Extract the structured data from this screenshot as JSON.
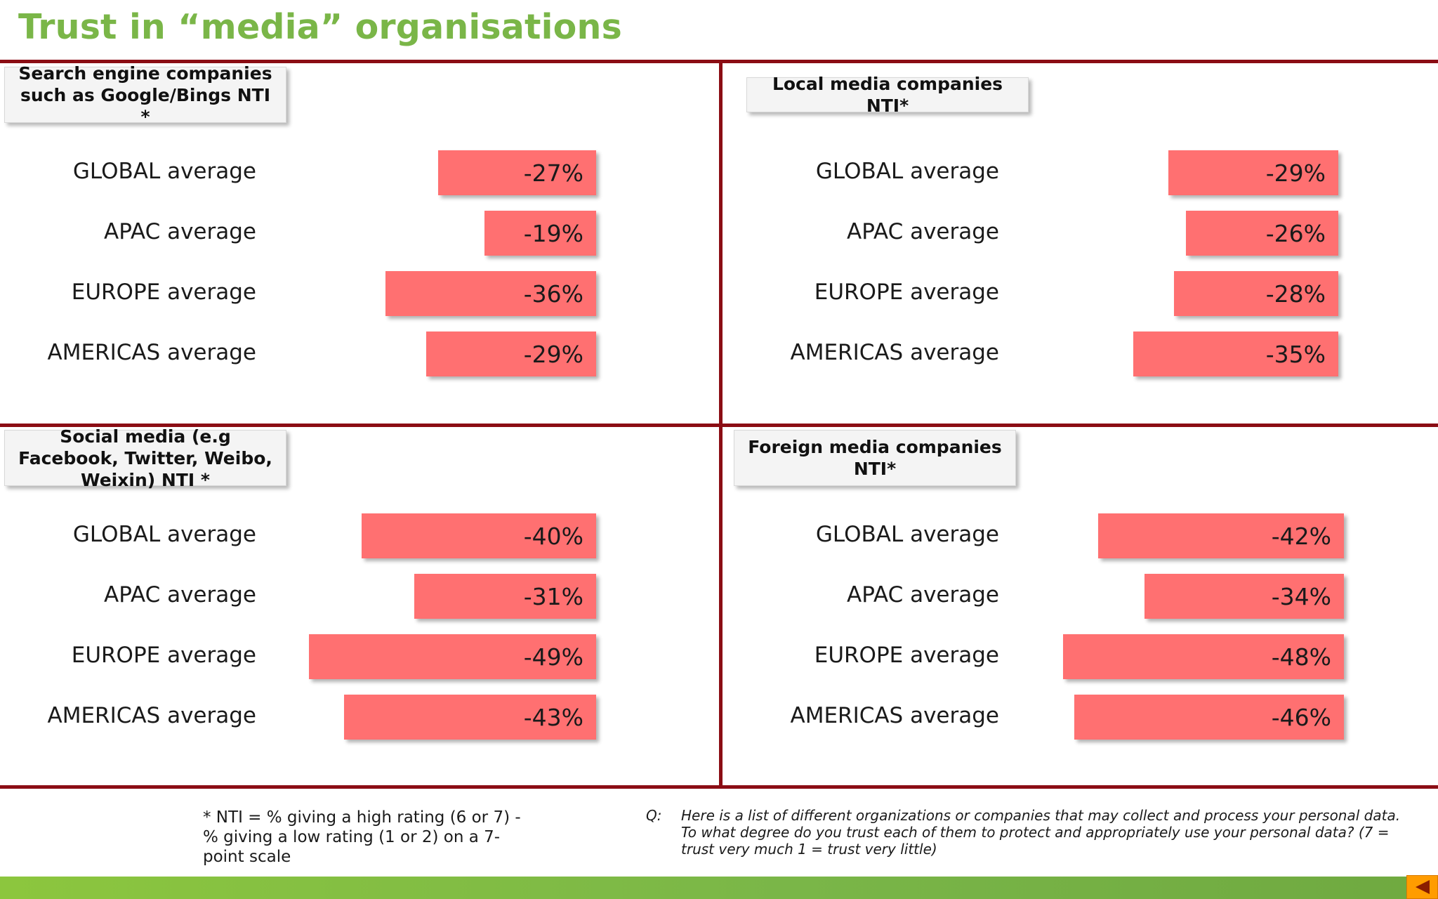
{
  "title": "Trust in “media” organisations",
  "chart_data": [
    {
      "type": "bar",
      "title": "Search engine companies such as Google/Bings NTI *",
      "categories": [
        "GLOBAL average",
        "APAC average",
        "EUROPE average",
        "AMERICAS average"
      ],
      "values": [
        -27,
        -19,
        -36,
        -29
      ],
      "value_labels": [
        "-27%",
        "-19%",
        "-36%",
        "-29%"
      ],
      "bar_color": "#ff7071"
    },
    {
      "type": "bar",
      "title": "Local media companies NTI*",
      "categories": [
        "GLOBAL average",
        "APAC average",
        "EUROPE average",
        "AMERICAS average"
      ],
      "values": [
        -29,
        -26,
        -28,
        -35
      ],
      "value_labels": [
        "-29%",
        "-26%",
        "-28%",
        "-35%"
      ],
      "bar_color": "#ff7071"
    },
    {
      "type": "bar",
      "title": "Social media (e.g Facebook, Twitter, Weibo, Weixin) NTI *",
      "categories": [
        "GLOBAL average",
        "APAC average",
        "EUROPE average",
        "AMERICAS average"
      ],
      "values": [
        -40,
        -31,
        -49,
        -43
      ],
      "value_labels": [
        "-40%",
        "-31%",
        "-49%",
        "-43%"
      ],
      "bar_color": "#ff7071"
    },
    {
      "type": "bar",
      "title": "Foreign media companies NTI*",
      "categories": [
        "GLOBAL average",
        "APAC average",
        "EUROPE average",
        "AMERICAS average"
      ],
      "values": [
        -42,
        -34,
        -48,
        -46
      ],
      "value_labels": [
        "-42%",
        "-34%",
        "-48%",
        "-46%"
      ],
      "bar_color": "#ff7071"
    }
  ],
  "footnote": "* NTI = % giving a high rating (6 or 7) - % giving a low rating (1 or 2) on a 7-point scale",
  "question": {
    "prefix": "Q:",
    "text": "Here is a list of different organizations or companies that may collect and process your personal data.  To what degree do you trust each of them to protect and appropriately use your personal data? (7 = trust very much  1 = trust very little)"
  },
  "colors": {
    "title": "#7ab648",
    "rule": "#8b0d14",
    "bar": "#ff7071",
    "band": "#7ab648",
    "nav_button": "#ff9c00"
  },
  "nav": {
    "prev_icon": "prev-arrow-icon"
  }
}
